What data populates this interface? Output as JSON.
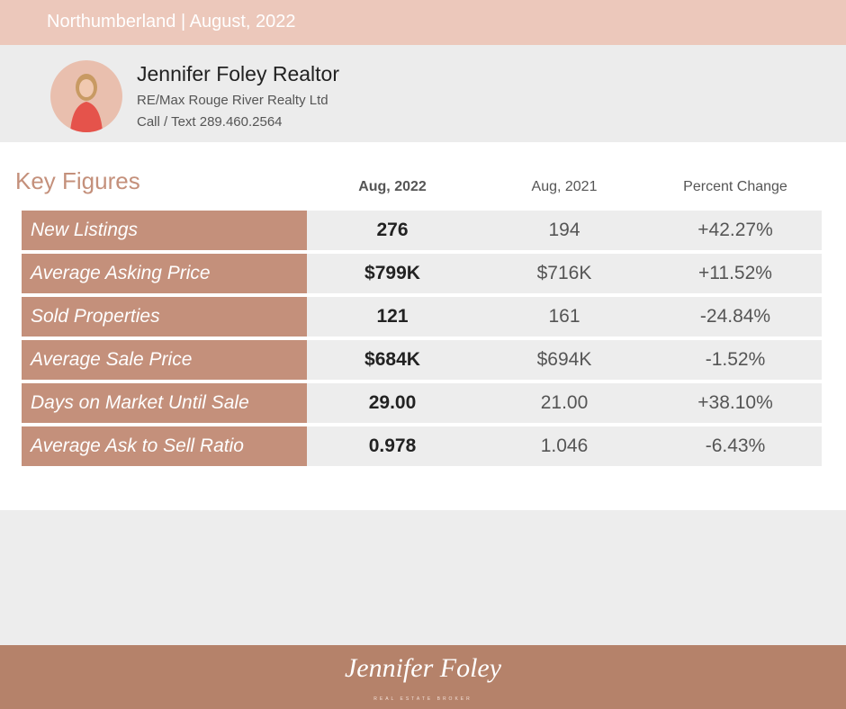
{
  "header": {
    "title": "Northumberland | August, 2022"
  },
  "agent": {
    "name": "Jennifer Foley Realtor",
    "company": "RE/Max Rouge River Realty Ltd",
    "phone": "Call / Text 289.460.2564"
  },
  "table": {
    "title": "Key Figures",
    "columns": [
      "Aug, 2022",
      "Aug, 2021",
      "Percent Change"
    ],
    "rows": [
      {
        "label": "New Listings",
        "values": [
          "276",
          "194",
          "+42.27%"
        ]
      },
      {
        "label": "Average Asking Price",
        "values": [
          "$799K",
          "$716K",
          "+11.52%"
        ]
      },
      {
        "label": "Sold Properties",
        "values": [
          "121",
          "161",
          "-24.84%"
        ]
      },
      {
        "label": "Average Sale Price",
        "values": [
          "$684K",
          "$694K",
          "-1.52%"
        ]
      },
      {
        "label": "Days on Market Until Sale",
        "values": [
          "29.00",
          "21.00",
          "+38.10%"
        ]
      },
      {
        "label": "Average Ask to Sell Ratio",
        "values": [
          "0.978",
          "1.046",
          "-6.43%"
        ]
      }
    ]
  },
  "footer": {
    "logo": "Jennifer Foley",
    "tagline": "REAL ESTATE BROKER"
  }
}
